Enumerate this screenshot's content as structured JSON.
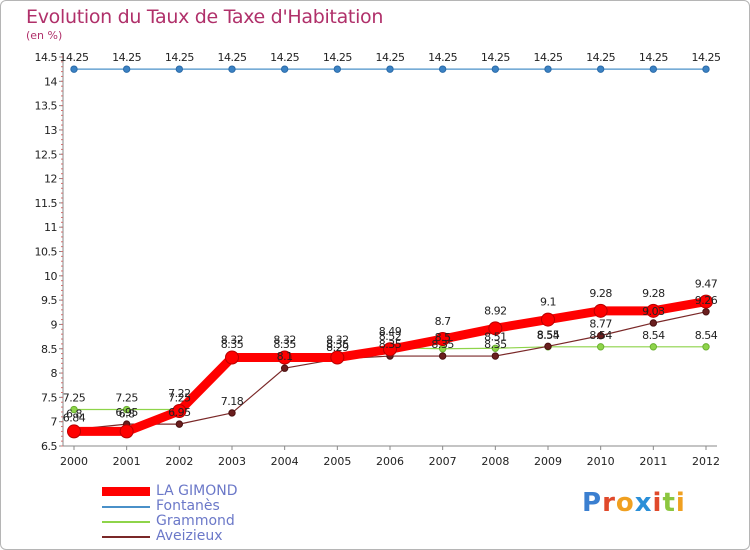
{
  "header": {
    "title": "Evolution du Taux de Taxe d'Habitation",
    "unit": "(en %)"
  },
  "logo": {
    "text": "Proxiti",
    "colors": [
      "#3b7fd0",
      "#e0492b",
      "#f0a020",
      "#2a8fd8",
      "#e0492b",
      "#8cc63f",
      "#f0a020"
    ]
  },
  "chart_data": {
    "type": "line",
    "x": [
      "2000",
      "2001",
      "2002",
      "2003",
      "2004",
      "2005",
      "2006",
      "2007",
      "2008",
      "2009",
      "2010",
      "2011",
      "2012"
    ],
    "yticks": [
      "6.5",
      "7",
      "7.5",
      "8",
      "8.5",
      "9",
      "9.5",
      "10",
      "10.5",
      "11",
      "11.5",
      "12",
      "12.5",
      "13",
      "13.5",
      "14",
      "14.5"
    ],
    "ylim": [
      6.5,
      14.5
    ],
    "grid": false,
    "legend_position": "bottom-left",
    "series": [
      {
        "name": "LA GIMOND",
        "color": "#ff0000",
        "values": [
          6.8,
          6.8,
          7.22,
          8.32,
          8.32,
          8.32,
          8.49,
          8.7,
          8.92,
          9.1,
          9.28,
          9.28,
          9.47
        ],
        "labels": [
          "6.8",
          "6.8",
          "7.22",
          "8.32",
          "8.32",
          "8.32",
          "8.49",
          "8.7",
          "8.92",
          "9.1",
          "9.28",
          "9.28",
          "9.47"
        ]
      },
      {
        "name": "Fontanès",
        "color": "#4a90c8",
        "values": [
          14.25,
          14.25,
          14.25,
          14.25,
          14.25,
          14.25,
          14.25,
          14.25,
          14.25,
          14.25,
          14.25,
          14.25,
          14.25
        ],
        "labels": [
          "14.25",
          "14.25",
          "14.25",
          "14.25",
          "14.25",
          "14.25",
          "14.25",
          "14.25",
          "14.25",
          "14.25",
          "14.25",
          "14.25",
          "14.25"
        ]
      },
      {
        "name": "Grammond",
        "color": "#8ed44a",
        "values": [
          7.25,
          7.25,
          7.25,
          8.35,
          8.35,
          8.35,
          8.52,
          8.5,
          8.51,
          8.54,
          8.54,
          8.54,
          8.54
        ],
        "labels": [
          "7.25",
          "7.25",
          "7.25",
          "8.35",
          "8.35",
          "8.35",
          "8.52",
          "8.5",
          "8.51",
          "8.54",
          "8.54",
          "8.54",
          "8.54"
        ]
      },
      {
        "name": "Aveizieux",
        "color": "#7a2828",
        "values": [
          6.84,
          6.95,
          6.95,
          7.18,
          8.1,
          8.29,
          8.35,
          8.35,
          8.35,
          8.55,
          8.77,
          9.03,
          9.26
        ],
        "labels": [
          "6.84",
          "6.95",
          "6.95",
          "7.18",
          "8.1",
          "8.29",
          "8.35",
          "8.35",
          "8.35",
          "8.55",
          "8.77",
          "9.03",
          "9.26"
        ]
      }
    ]
  }
}
